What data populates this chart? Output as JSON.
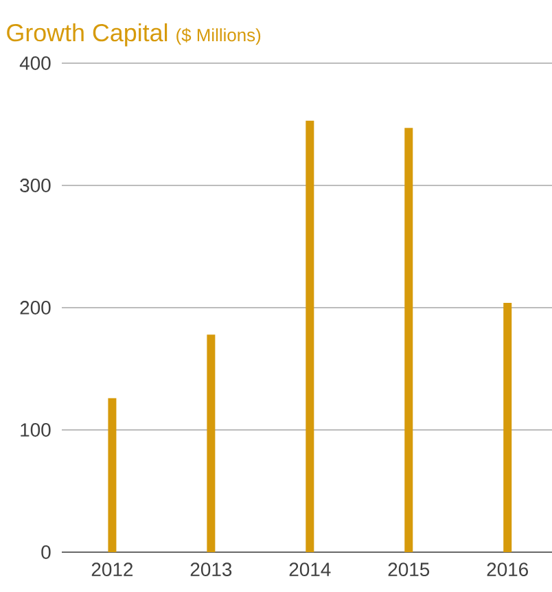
{
  "chart_data": {
    "type": "bar",
    "title": "Growth Capital",
    "subtitle": "($ Millions)",
    "categories": [
      "2012",
      "2013",
      "2014",
      "2015",
      "2016"
    ],
    "values": [
      126,
      178,
      353,
      347,
      204
    ],
    "color": "#d69a0b",
    "ylim": [
      0,
      400
    ],
    "yticks": [
      0,
      100,
      200,
      300,
      400
    ],
    "grid": "y"
  }
}
